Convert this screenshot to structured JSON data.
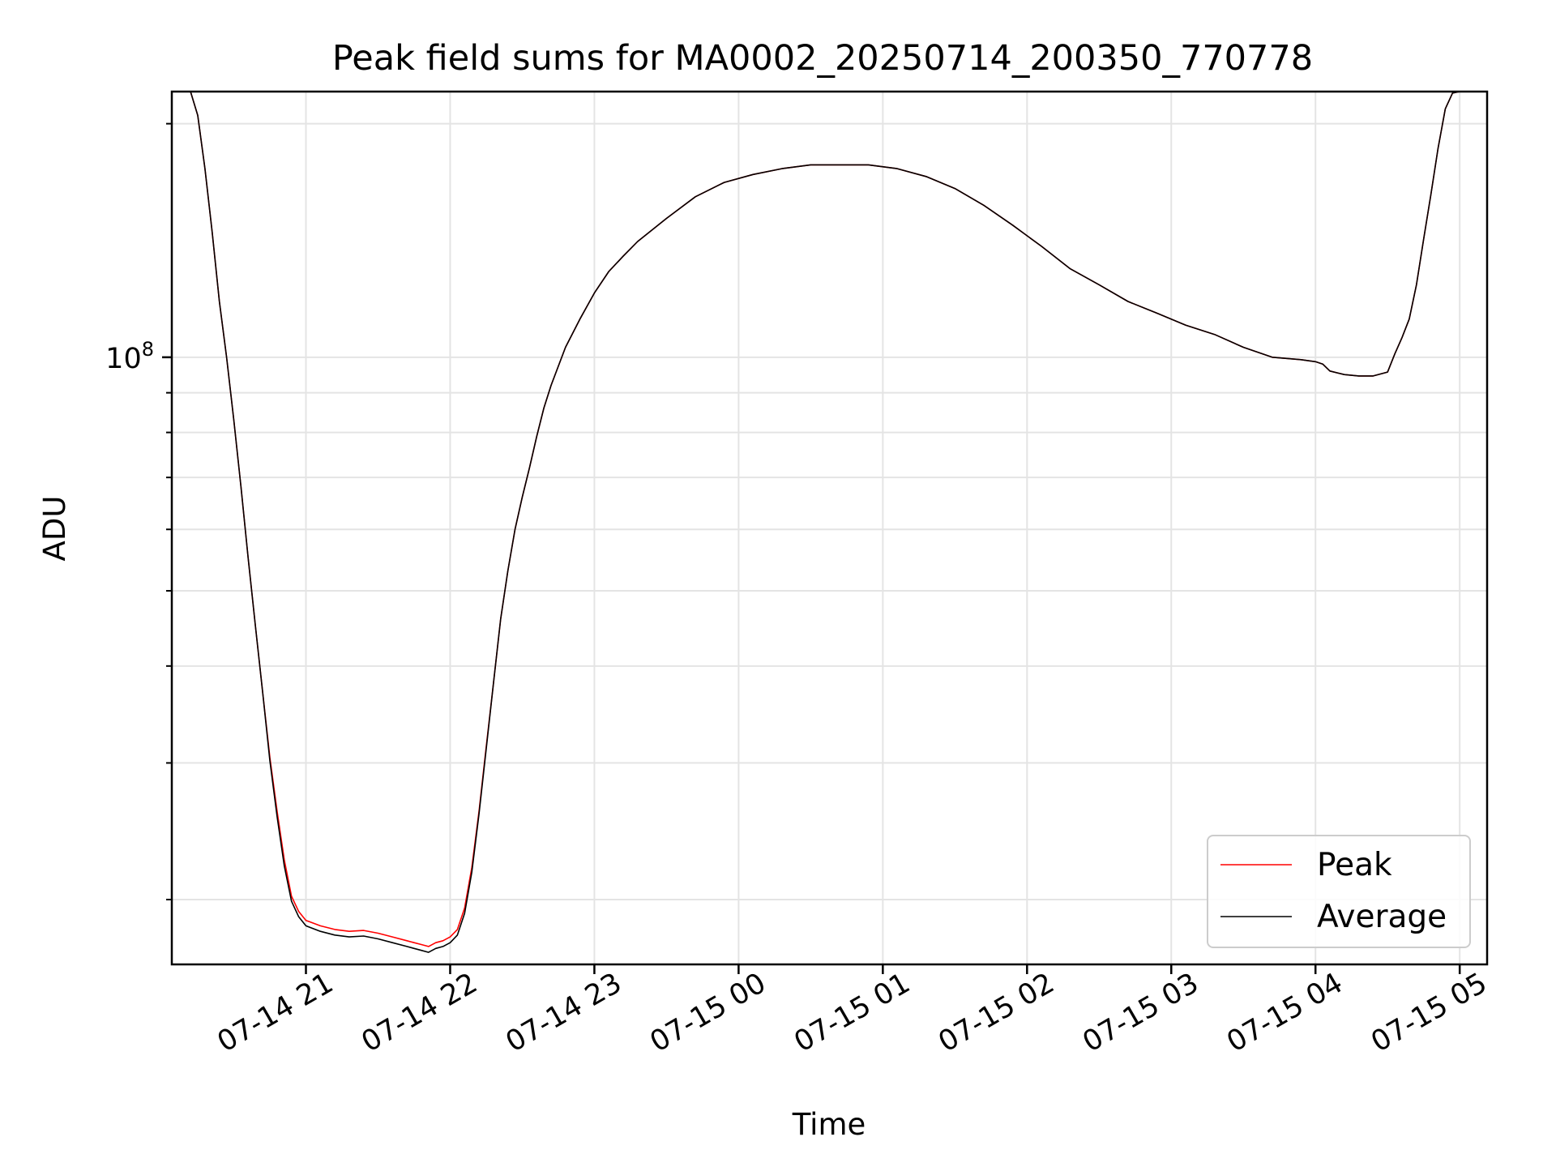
{
  "chart_data": {
    "type": "line",
    "title": "Peak field sums for MA0002_20250714_200350_770778",
    "xlabel": "Time",
    "ylabel": "ADU",
    "y_scale": "log",
    "x_unit": "hours since 2025-07-14 00:00",
    "xlim": [
      20.07,
      29.19
    ],
    "ylim": [
      16500000,
      220000000
    ],
    "grid": true,
    "legend_position": "lower-right",
    "x_ticks": [
      {
        "value": 21,
        "label": "07-14 21"
      },
      {
        "value": 22,
        "label": "07-14 22"
      },
      {
        "value": 23,
        "label": "07-14 23"
      },
      {
        "value": 24,
        "label": "07-15 00"
      },
      {
        "value": 25,
        "label": "07-15 01"
      },
      {
        "value": 26,
        "label": "07-15 02"
      },
      {
        "value": 27,
        "label": "07-15 03"
      },
      {
        "value": 28,
        "label": "07-15 04"
      },
      {
        "value": 29,
        "label": "07-15 05"
      }
    ],
    "y_major_ticks": [
      {
        "value": 100000000,
        "base": "10",
        "exp": "8"
      }
    ],
    "y_minor_ticks": [
      20000000,
      30000000,
      40000000,
      50000000,
      60000000,
      70000000,
      80000000,
      90000000,
      200000000
    ],
    "series": [
      {
        "name": "Peak",
        "color": "#ff0000",
        "x": [
          20.2,
          20.25,
          20.3,
          20.35,
          20.4,
          20.45,
          20.5,
          20.55,
          20.6,
          20.65,
          20.7,
          20.75,
          20.8,
          20.85,
          20.9,
          20.95,
          21.0,
          21.1,
          21.2,
          21.3,
          21.4,
          21.5,
          21.6,
          21.7,
          21.75,
          21.8,
          21.85,
          21.9,
          21.95,
          22.0,
          22.05,
          22.1,
          22.15,
          22.2,
          22.25,
          22.3,
          22.35,
          22.4,
          22.45,
          22.5,
          22.55,
          22.6,
          22.65,
          22.7,
          22.8,
          22.9,
          23.0,
          23.1,
          23.2,
          23.3,
          23.5,
          23.7,
          23.9,
          24.1,
          24.3,
          24.5,
          24.7,
          24.9,
          25.1,
          25.3,
          25.5,
          25.7,
          25.9,
          26.1,
          26.3,
          26.5,
          26.7,
          26.9,
          27.1,
          27.3,
          27.5,
          27.7,
          27.9,
          28.0,
          28.05,
          28.1,
          28.2,
          28.3,
          28.4,
          28.5,
          28.55,
          28.6,
          28.65,
          28.7,
          28.75,
          28.8,
          28.85,
          28.9,
          28.95,
          29.0,
          29.05,
          29.1,
          29.19
        ],
        "values": [
          220000000,
          205000000,
          175000000,
          145000000,
          118000000,
          100000000,
          83000000,
          68000000,
          55000000,
          45000000,
          37000000,
          30500000,
          26000000,
          22500000,
          20200000,
          19300000,
          18800000,
          18500000,
          18300000,
          18200000,
          18250000,
          18100000,
          17900000,
          17700000,
          17600000,
          17500000,
          17400000,
          17600000,
          17700000,
          17900000,
          18300000,
          19500000,
          22000000,
          26000000,
          31500000,
          38000000,
          46000000,
          53000000,
          60000000,
          66000000,
          72000000,
          79000000,
          86000000,
          92000000,
          103000000,
          112000000,
          121000000,
          129000000,
          135000000,
          141000000,
          151000000,
          161000000,
          168000000,
          172000000,
          175000000,
          177000000,
          177000000,
          177000000,
          175000000,
          171000000,
          165000000,
          157000000,
          148000000,
          139000000,
          130000000,
          124000000,
          118000000,
          114000000,
          110000000,
          107000000,
          103000000,
          100000000,
          99300000,
          98700000,
          98000000,
          96000000,
          95000000,
          94600000,
          94600000,
          95700000,
          101000000,
          106000000,
          112000000,
          124000000,
          142000000,
          162000000,
          186000000,
          209000000,
          219000000,
          220000000,
          220000000,
          220000000,
          220000000
        ]
      },
      {
        "name": "Average",
        "color": "#000000",
        "x": [
          20.2,
          20.25,
          20.3,
          20.35,
          20.4,
          20.45,
          20.5,
          20.55,
          20.6,
          20.65,
          20.7,
          20.75,
          20.8,
          20.85,
          20.9,
          20.95,
          21.0,
          21.1,
          21.2,
          21.3,
          21.4,
          21.5,
          21.6,
          21.7,
          21.75,
          21.8,
          21.85,
          21.9,
          21.95,
          22.0,
          22.05,
          22.1,
          22.15,
          22.2,
          22.25,
          22.3,
          22.35,
          22.4,
          22.45,
          22.5,
          22.55,
          22.6,
          22.65,
          22.7,
          22.8,
          22.9,
          23.0,
          23.1,
          23.2,
          23.3,
          23.5,
          23.7,
          23.9,
          24.1,
          24.3,
          24.5,
          24.7,
          24.9,
          25.1,
          25.3,
          25.5,
          25.7,
          25.9,
          26.1,
          26.3,
          26.5,
          26.7,
          26.9,
          27.1,
          27.3,
          27.5,
          27.7,
          27.9,
          28.0,
          28.05,
          28.1,
          28.2,
          28.3,
          28.4,
          28.5,
          28.55,
          28.6,
          28.65,
          28.7,
          28.75,
          28.8,
          28.85,
          28.9,
          28.95,
          29.0,
          29.05,
          29.1,
          29.19
        ],
        "values": [
          220000000,
          205000000,
          175000000,
          145000000,
          118000000,
          100000000,
          83000000,
          68000000,
          55000000,
          45000000,
          37000000,
          30200000,
          25600000,
          22100000,
          19900000,
          19000000,
          18500000,
          18200000,
          18000000,
          17900000,
          17950000,
          17800000,
          17600000,
          17400000,
          17300000,
          17200000,
          17100000,
          17300000,
          17400000,
          17600000,
          18000000,
          19200000,
          21700000,
          25800000,
          31300000,
          38000000,
          46000000,
          53000000,
          60000000,
          66000000,
          72000000,
          79000000,
          86000000,
          92000000,
          103000000,
          112000000,
          121000000,
          129000000,
          135000000,
          141000000,
          151000000,
          161000000,
          168000000,
          172000000,
          175000000,
          177000000,
          177000000,
          177000000,
          175000000,
          171000000,
          165000000,
          157000000,
          148000000,
          139000000,
          130000000,
          124000000,
          118000000,
          114000000,
          110000000,
          107000000,
          103000000,
          100000000,
          99300000,
          98700000,
          98000000,
          96000000,
          95000000,
          94600000,
          94600000,
          95700000,
          101000000,
          106000000,
          112000000,
          124000000,
          142000000,
          162000000,
          186000000,
          209000000,
          219000000,
          220000000,
          220000000,
          220000000,
          220000000
        ]
      }
    ]
  }
}
